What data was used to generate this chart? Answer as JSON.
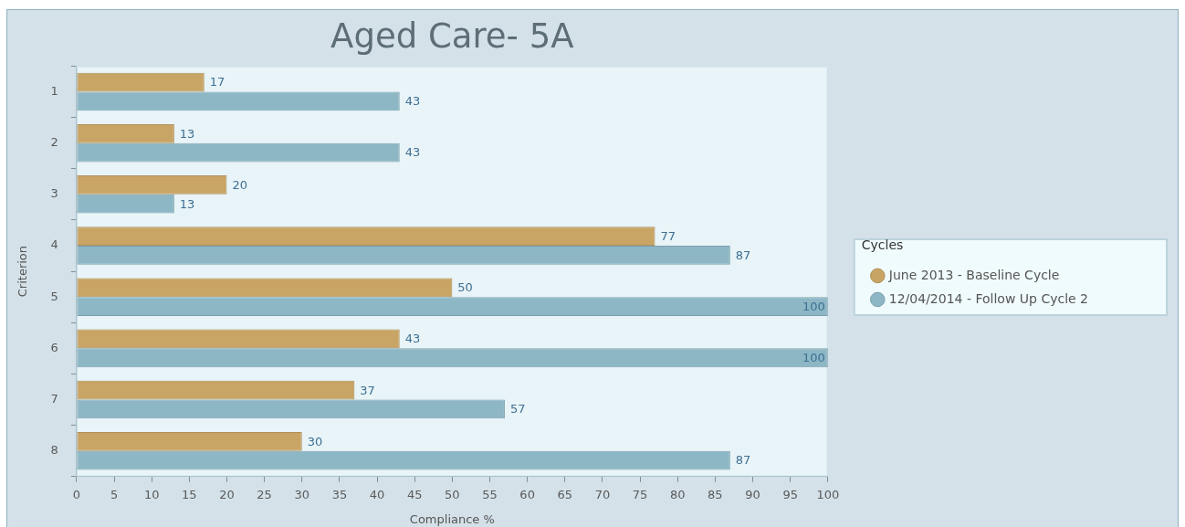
{
  "chart_data": {
    "type": "bar",
    "orientation": "horizontal",
    "title": "Aged Care- 5A",
    "xlabel": "Compliance %",
    "ylabel": "Criterion",
    "legend_title": "Cycles",
    "legend": "right",
    "grid": false,
    "data_labels": true,
    "categories": [
      "1",
      "2",
      "3",
      "4",
      "5",
      "6",
      "7",
      "8"
    ],
    "series": [
      {
        "name": "June 2013 - Baseline Cycle",
        "color": "#c8a465",
        "values": [
          17,
          13,
          20,
          77,
          50,
          43,
          37,
          30
        ]
      },
      {
        "name": "12/04/2014 - Follow Up Cycle 2",
        "color": "#8db7c5",
        "values": [
          43,
          43,
          13,
          87,
          100,
          100,
          57,
          87
        ]
      }
    ],
    "xlim": [
      0,
      100
    ],
    "xticks": [
      0,
      5,
      10,
      15,
      20,
      25,
      30,
      35,
      40,
      45,
      50,
      55,
      60,
      65,
      70,
      75,
      80,
      85,
      90,
      95,
      100
    ]
  }
}
